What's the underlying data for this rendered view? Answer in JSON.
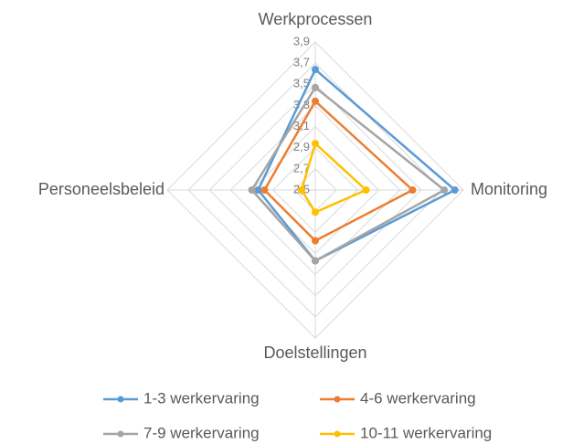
{
  "chart_data": {
    "type": "radar",
    "categories": [
      "Werkprocessen",
      "Monitoring",
      "Doelstellingen",
      "Personeelsbeleid"
    ],
    "ylim": [
      2.5,
      3.9
    ],
    "yticks": [
      {
        "value": 2.5,
        "label": "2,5"
      },
      {
        "value": 2.7,
        "label": "2,7"
      },
      {
        "value": 2.9,
        "label": "2,9"
      },
      {
        "value": 3.1,
        "label": "3,1"
      },
      {
        "value": 3.3,
        "label": "3,3"
      },
      {
        "value": 3.5,
        "label": "3,5"
      },
      {
        "value": 3.7,
        "label": "3,7"
      },
      {
        "value": 3.9,
        "label": "3,9"
      }
    ],
    "grid": true,
    "series": [
      {
        "name": "1-3 werkervaring",
        "color": "#5b9bd5",
        "values": [
          3.64,
          3.82,
          3.17,
          3.04
        ]
      },
      {
        "name": "4-6 werkervaring",
        "color": "#ed7d31",
        "values": [
          3.34,
          3.42,
          2.98,
          2.98
        ]
      },
      {
        "name": "7-9 werkervaring",
        "color": "#a5a5a5",
        "values": [
          3.47,
          3.72,
          3.17,
          3.1
        ]
      },
      {
        "name": "10-11 werkervaring",
        "color": "#ffc000",
        "values": [
          2.94,
          2.98,
          2.71,
          2.63
        ]
      }
    ]
  }
}
